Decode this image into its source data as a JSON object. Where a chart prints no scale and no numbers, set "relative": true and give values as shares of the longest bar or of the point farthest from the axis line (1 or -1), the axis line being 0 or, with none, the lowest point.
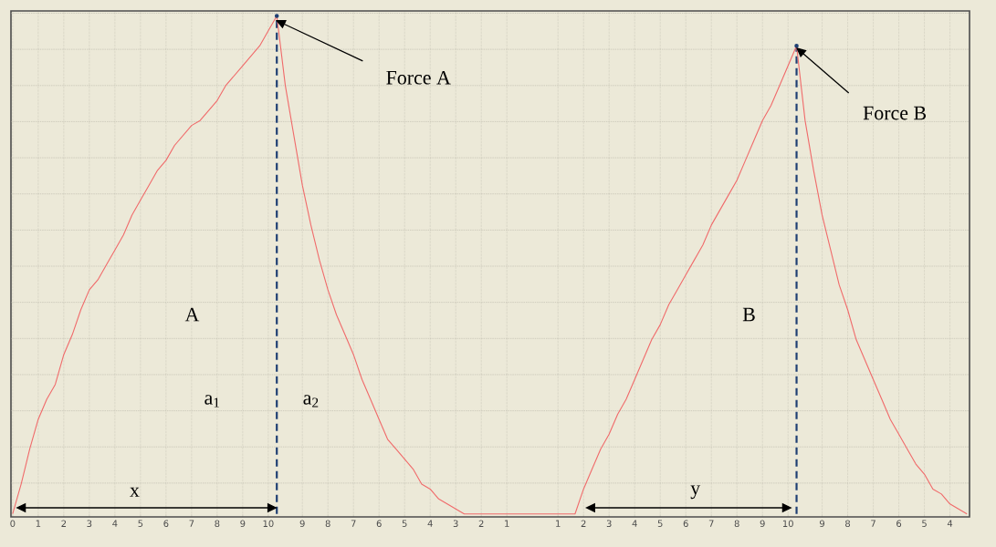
{
  "chart_data": {
    "type": "line",
    "relative": true,
    "categories": [
      "0",
      null,
      null,
      "1",
      null,
      null,
      "2",
      null,
      null,
      "3",
      null,
      null,
      "4",
      null,
      null,
      "5",
      null,
      null,
      "6",
      null,
      null,
      "7",
      null,
      null,
      "8",
      null,
      null,
      "9",
      null,
      null,
      "10",
      null,
      null,
      null,
      "9",
      null,
      null,
      "8",
      null,
      null,
      "7",
      null,
      null,
      "6",
      null,
      null,
      "5",
      null,
      null,
      "4",
      null,
      null,
      "3",
      null,
      null,
      "2",
      null,
      null,
      "1",
      null,
      null,
      null,
      null,
      null,
      "1",
      null,
      null,
      "2",
      null,
      null,
      "3",
      null,
      null,
      "4",
      null,
      null,
      "5",
      null,
      null,
      "6",
      null,
      null,
      "7",
      null,
      null,
      "8",
      null,
      null,
      "9",
      null,
      null,
      "10",
      null,
      null,
      null,
      "9",
      null,
      null,
      "8",
      null,
      null,
      "7",
      null,
      null,
      "6",
      null,
      null,
      "5",
      null,
      null,
      "4",
      null,
      null
    ],
    "series": [
      {
        "color": "#f06a6a",
        "line_style": "solid",
        "values": [
          0,
          0.06,
          0.13,
          0.19,
          0.23,
          0.26,
          0.32,
          0.36,
          0.41,
          0.45,
          0.47,
          0.5,
          0.53,
          0.56,
          0.6,
          0.63,
          0.66,
          0.69,
          0.71,
          0.74,
          0.76,
          0.78,
          0.79,
          0.81,
          0.83,
          0.86,
          0.88,
          0.9,
          0.92,
          0.94,
          0.97,
          1.0,
          0.86,
          0.76,
          0.66,
          0.58,
          0.51,
          0.45,
          0.4,
          0.36,
          0.32,
          0.27,
          0.23,
          0.19,
          0.15,
          0.13,
          0.11,
          0.09,
          0.06,
          0.05,
          0.03,
          0.02,
          0.01,
          0,
          0,
          0,
          0,
          0,
          0,
          0,
          0,
          0,
          0,
          0,
          0,
          0,
          0,
          0.05,
          0.09,
          0.13,
          0.16,
          0.2,
          0.23,
          0.27,
          0.31,
          0.35,
          0.38,
          0.42,
          0.45,
          0.48,
          0.51,
          0.54,
          0.58,
          0.61,
          0.64,
          0.67,
          0.71,
          0.75,
          0.79,
          0.82,
          0.86,
          0.9,
          0.94,
          0.79,
          0.69,
          0.6,
          0.53,
          0.46,
          0.41,
          0.35,
          0.31,
          0.27,
          0.23,
          0.19,
          0.16,
          0.13,
          0.1,
          0.08,
          0.05,
          0.04,
          0.02,
          0.01,
          0
        ]
      },
      {
        "type": "lollipop",
        "color": "#1f3f73",
        "line_style": "dashed",
        "values": [
          null,
          null,
          null,
          null,
          null,
          null,
          null,
          null,
          null,
          null,
          null,
          null,
          null,
          null,
          null,
          null,
          null,
          null,
          null,
          null,
          null,
          null,
          null,
          null,
          null,
          null,
          null,
          null,
          null,
          null,
          null,
          1.0,
          null,
          null,
          null,
          null,
          null,
          null,
          null,
          null,
          null,
          null,
          null,
          null,
          null,
          null,
          null,
          null,
          null,
          null,
          null,
          null,
          null,
          null,
          null,
          null,
          null,
          null,
          null,
          null,
          null,
          null,
          null,
          null,
          null,
          null,
          null,
          null,
          null,
          null,
          null,
          null,
          null,
          null,
          null,
          null,
          null,
          null,
          null,
          null,
          null,
          null,
          null,
          null,
          null,
          null,
          null,
          null,
          null,
          null,
          null,
          null,
          0.94,
          null,
          null,
          null,
          null,
          null,
          null,
          null,
          null,
          null,
          null,
          null,
          null,
          null,
          null,
          null,
          null,
          null,
          null,
          null,
          null
        ]
      }
    ],
    "grid": true,
    "marker": "none",
    "annotations": [
      "Force A",
      "Force B",
      "A",
      "a$_{1}$",
      "a$_{2}$",
      "B",
      "x",
      "y"
    ]
  }
}
